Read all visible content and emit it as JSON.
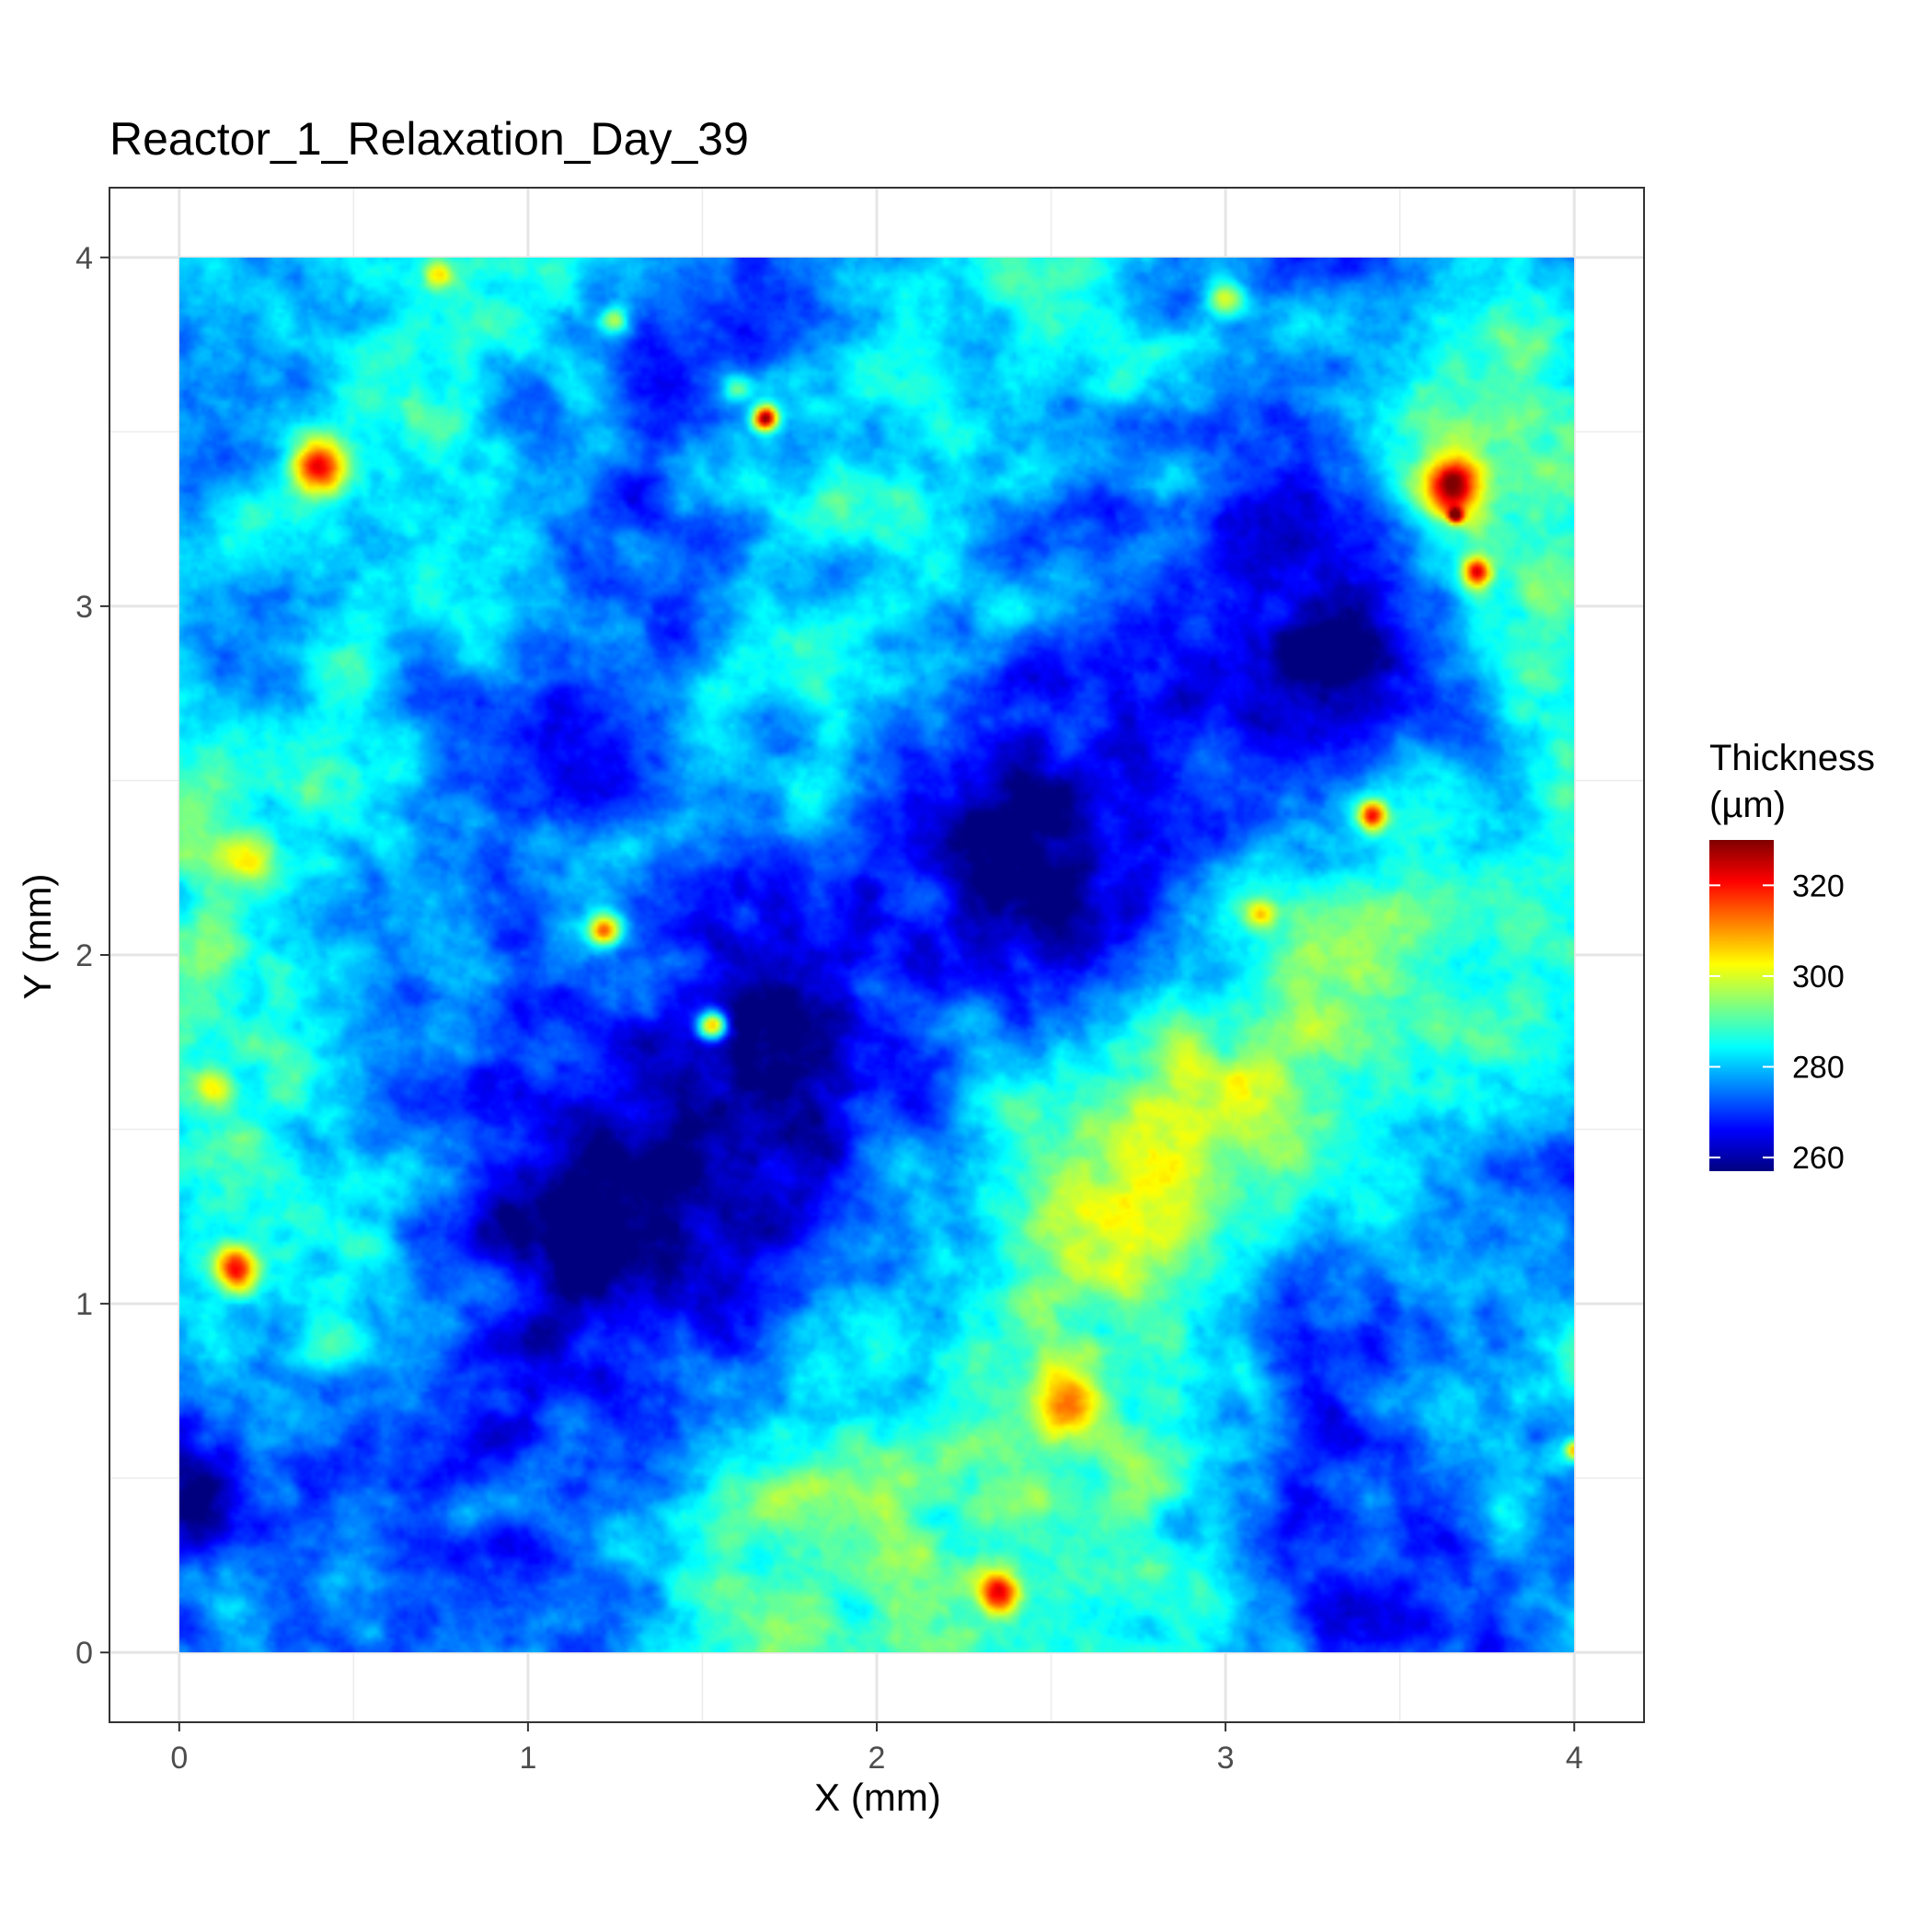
{
  "chart_data": {
    "type": "heatmap",
    "title": "Reactor_1_Relaxation_Day_39",
    "xlabel": "X (mm)",
    "ylabel": "Y (mm)",
    "xlim": [
      -0.2,
      4.2
    ],
    "ylim": [
      -0.2,
      4.2
    ],
    "data_extent": {
      "x": [
        0,
        4
      ],
      "y": [
        0,
        4
      ]
    },
    "x_ticks": [
      0,
      1,
      2,
      3,
      4
    ],
    "x_tick_labels": [
      "0",
      "1",
      "2",
      "3",
      "4"
    ],
    "y_ticks": [
      0,
      1,
      2,
      3,
      4
    ],
    "y_tick_labels": [
      "0",
      "1",
      "2",
      "3",
      "4"
    ],
    "minor_breaks": [
      0.5,
      1.5,
      2.5,
      3.5
    ],
    "grid": true,
    "legend": {
      "title_line1": "Thickness",
      "title_line2": "(µm)",
      "placement": "right",
      "range": [
        257,
        330
      ],
      "ticks": [
        260,
        280,
        300,
        320
      ],
      "tick_labels": [
        "260",
        "280",
        "300",
        "320"
      ],
      "colormap": [
        "#00007F",
        "#0000FF",
        "#007FFF",
        "#00FFFF",
        "#7FFF7F",
        "#FFFF00",
        "#FF7F00",
        "#FF0000",
        "#7F0000"
      ]
    },
    "base_level_um": 281,
    "field_features_um": [
      {
        "x": 0.2,
        "y": 3.6,
        "r": 0.35,
        "dz": -10
      },
      {
        "x": 0.1,
        "y": 2.9,
        "r": 0.3,
        "dz": -15
      },
      {
        "x": 0.35,
        "y": 3.1,
        "r": 0.4,
        "dz": 12
      },
      {
        "x": 0.25,
        "y": 2.4,
        "r": 0.45,
        "dz": 10
      },
      {
        "x": 0.15,
        "y": 1.6,
        "r": 0.3,
        "dz": 10
      },
      {
        "x": 0.5,
        "y": 1.7,
        "r": 0.35,
        "dz": -8
      },
      {
        "x": 0.3,
        "y": 1.0,
        "r": 0.35,
        "dz": 8
      },
      {
        "x": 0.2,
        "y": 0.6,
        "r": 0.4,
        "dz": -10
      },
      {
        "x": 0.05,
        "y": 0.45,
        "r": 0.15,
        "dz": -15
      },
      {
        "x": 0.9,
        "y": 0.3,
        "r": 0.35,
        "dz": -12
      },
      {
        "x": 0.9,
        "y": 2.5,
        "r": 0.3,
        "dz": -18
      },
      {
        "x": 0.75,
        "y": 3.8,
        "r": 0.35,
        "dz": 10
      },
      {
        "x": 1.0,
        "y": 3.6,
        "r": 0.4,
        "dz": -8
      },
      {
        "x": 1.2,
        "y": 1.4,
        "r": 0.45,
        "dz": -12
      },
      {
        "x": 1.1,
        "y": 1.3,
        "r": 0.18,
        "dz": -10
      },
      {
        "x": 1.4,
        "y": 3.0,
        "r": 0.35,
        "dz": -7
      },
      {
        "x": 1.1,
        "y": 2.1,
        "r": 0.3,
        "dz": 6
      },
      {
        "x": 1.6,
        "y": 2.0,
        "r": 0.35,
        "dz": -6
      },
      {
        "x": 1.75,
        "y": 1.6,
        "r": 0.3,
        "dz": -12
      },
      {
        "x": 1.4,
        "y": 0.9,
        "r": 0.35,
        "dz": -8
      },
      {
        "x": 1.8,
        "y": 0.2,
        "r": 0.35,
        "dz": 8
      },
      {
        "x": 1.9,
        "y": 2.7,
        "r": 0.3,
        "dz": 10
      },
      {
        "x": 2.0,
        "y": 3.4,
        "r": 0.35,
        "dz": 5
      },
      {
        "x": 2.3,
        "y": 2.3,
        "r": 0.4,
        "dz": -14
      },
      {
        "x": 2.6,
        "y": 2.2,
        "r": 0.3,
        "dz": -12
      },
      {
        "x": 2.7,
        "y": 3.2,
        "r": 0.45,
        "dz": -6
      },
      {
        "x": 2.5,
        "y": 0.7,
        "r": 0.5,
        "dz": 10
      },
      {
        "x": 2.6,
        "y": 1.3,
        "r": 0.3,
        "dz": 8
      },
      {
        "x": 2.2,
        "y": 0.9,
        "r": 0.35,
        "dz": -6
      },
      {
        "x": 2.95,
        "y": 1.4,
        "r": 0.3,
        "dz": 10
      },
      {
        "x": 3.1,
        "y": 2.0,
        "r": 0.45,
        "dz": 10
      },
      {
        "x": 3.1,
        "y": 2.5,
        "r": 0.35,
        "dz": -10
      },
      {
        "x": 2.9,
        "y": 3.6,
        "r": 0.35,
        "dz": 6
      },
      {
        "x": 3.3,
        "y": 3.9,
        "r": 0.25,
        "dz": -10
      },
      {
        "x": 3.2,
        "y": 3.2,
        "r": 0.3,
        "dz": -12
      },
      {
        "x": 3.35,
        "y": 2.9,
        "r": 0.25,
        "dz": -16
      },
      {
        "x": 3.7,
        "y": 3.3,
        "r": 0.35,
        "dz": 12
      },
      {
        "x": 3.6,
        "y": 2.0,
        "r": 0.35,
        "dz": 8
      },
      {
        "x": 3.8,
        "y": 1.4,
        "r": 0.35,
        "dz": -8
      },
      {
        "x": 3.3,
        "y": 0.9,
        "r": 0.3,
        "dz": -14
      },
      {
        "x": 3.2,
        "y": 0.4,
        "r": 0.3,
        "dz": -15
      },
      {
        "x": 3.7,
        "y": 0.8,
        "r": 0.35,
        "dz": 7
      },
      {
        "x": 3.6,
        "y": 0.1,
        "r": 0.3,
        "dz": -10
      },
      {
        "x": 2.9,
        "y": 0.3,
        "r": 0.35,
        "dz": 8
      },
      {
        "x": 1.6,
        "y": 3.8,
        "r": 0.3,
        "dz": -8
      },
      {
        "x": 0.6,
        "y": 0.4,
        "r": 0.3,
        "dz": 6
      },
      {
        "x": 1.6,
        "y": 0.5,
        "r": 0.3,
        "dz": 5
      }
    ],
    "hotspots_um": [
      {
        "x": 0.4,
        "y": 3.4,
        "r": 0.055,
        "dz": 40
      },
      {
        "x": 0.16,
        "y": 1.1,
        "r": 0.045,
        "dz": 40
      },
      {
        "x": 1.22,
        "y": 2.07,
        "r": 0.035,
        "dz": 38
      },
      {
        "x": 1.53,
        "y": 1.8,
        "r": 0.03,
        "dz": 45
      },
      {
        "x": 1.68,
        "y": 3.54,
        "r": 0.025,
        "dz": 50
      },
      {
        "x": 2.35,
        "y": 0.17,
        "r": 0.04,
        "dz": 33
      },
      {
        "x": 2.55,
        "y": 0.72,
        "r": 0.07,
        "dz": 28
      },
      {
        "x": 3.42,
        "y": 2.4,
        "r": 0.03,
        "dz": 38
      },
      {
        "x": 3.65,
        "y": 3.35,
        "r": 0.055,
        "dz": 40
      },
      {
        "x": 3.72,
        "y": 3.1,
        "r": 0.03,
        "dz": 38
      },
      {
        "x": 3.0,
        "y": 3.88,
        "r": 0.035,
        "dz": 25
      },
      {
        "x": 3.1,
        "y": 2.12,
        "r": 0.03,
        "dz": 22
      },
      {
        "x": 0.74,
        "y": 3.95,
        "r": 0.03,
        "dz": 22
      },
      {
        "x": 1.25,
        "y": 3.82,
        "r": 0.025,
        "dz": 20
      },
      {
        "x": 1.6,
        "y": 3.62,
        "r": 0.03,
        "dz": 18
      },
      {
        "x": 4.0,
        "y": 0.58,
        "r": 0.02,
        "dz": 30
      },
      {
        "x": 0.1,
        "y": 1.62,
        "r": 0.04,
        "dz": 18
      },
      {
        "x": 3.66,
        "y": 3.26,
        "r": 0.015,
        "dz": 40
      },
      {
        "x": 0.2,
        "y": 2.28,
        "r": 0.05,
        "dz": 15
      }
    ]
  }
}
